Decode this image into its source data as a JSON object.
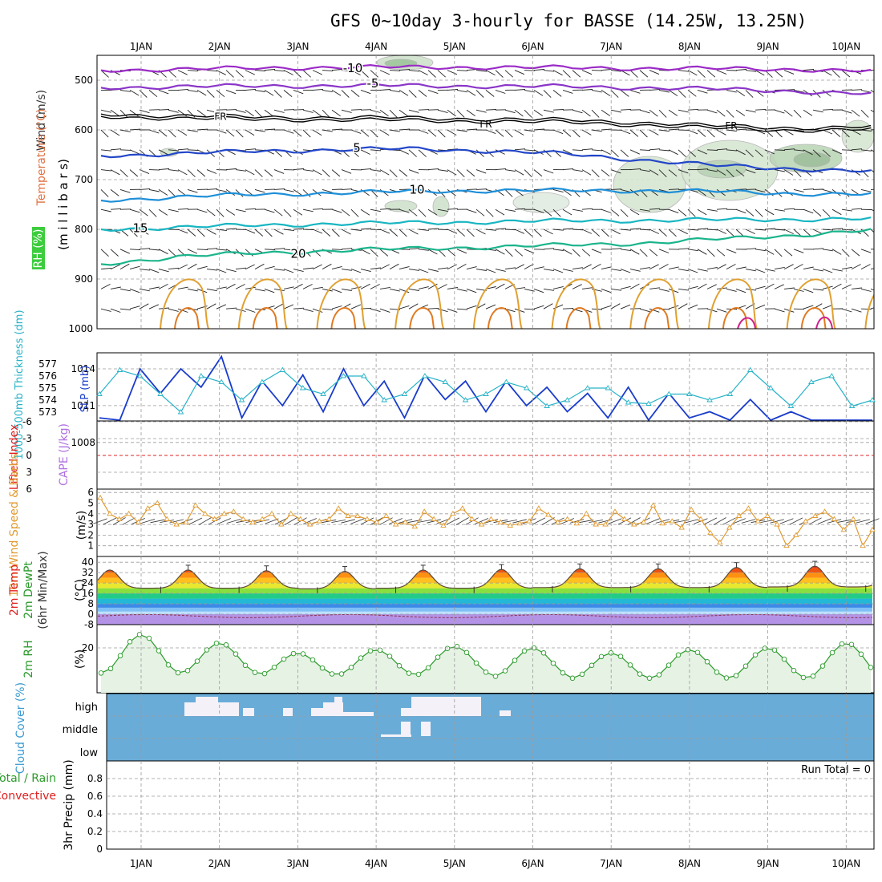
{
  "title": "GFS 0~10day 3-hourly for BASSE (14.25W, 13.25N)",
  "chart_data": {
    "type": "meteogram",
    "x_axis": {
      "ticks": [
        "1JAN",
        "2JAN",
        "3JAN",
        "4JAN",
        "5JAN",
        "6JAN",
        "7JAN",
        "8JAN",
        "9JAN",
        "10JAN"
      ]
    },
    "panels": {
      "upper_air": {
        "labels": {
          "wind": "Wind (m/s)",
          "temperature": "Temperature (°C)",
          "rh": "RH (%)",
          "pressure": "(m i l l i b a r s)"
        },
        "y_ticks": [
          "500",
          "600",
          "700",
          "800",
          "900",
          "1000"
        ],
        "ylim": [
          450,
          1000
        ],
        "freezing_label": "FR",
        "isotherms": [
          {
            "label": "-10",
            "color": "#9b2bc7",
            "levels": [
              480,
              478,
              476,
              474,
              474,
              474,
              475,
              476,
              477,
              478,
              482
            ]
          },
          {
            "label": "-5",
            "color": "#8a35c8",
            "levels": [
              515,
              513,
              512,
              511,
              511,
              512,
              513,
              515,
              518,
              522,
              528
            ]
          },
          {
            "label": "FR",
            "color": "#000000",
            "levels": [
              568,
              572,
              574,
              575,
              576,
              578,
              580,
              585,
              592,
              596,
              594
            ]
          },
          {
            "label": "5",
            "color": "#2246c8",
            "levels": [
              652,
              648,
              643,
              640,
              638,
              642,
              648,
              660,
              672,
              678,
              684
            ]
          },
          {
            "label": "10",
            "color": "#1e8fd8",
            "levels": [
              742,
              735,
              730,
              727,
              724,
              722,
              722,
              722,
              724,
              728,
              730
            ]
          },
          {
            "label": "15",
            "color": "#18b6c2",
            "levels": [
              800,
              796,
              792,
              789,
              787,
              785,
              783,
              782,
              781,
              780,
              779
            ]
          },
          {
            "label": "20",
            "color": "#1ab48c",
            "levels": [
              870,
              855,
              848,
              843,
              839,
              836,
              832,
              828,
              820,
              812,
              802
            ]
          }
        ]
      },
      "slp_thickness": {
        "labels": {
          "thickness": "1000-500mb Thickness (dm)",
          "slp": "SLP (mb)"
        },
        "thickness_ticks": [
          "577",
          "576",
          "575",
          "574",
          "573"
        ],
        "slp_ticks": [
          "1014",
          "1011",
          "1008"
        ],
        "slp": [
          1010,
          1009.5,
          1014,
          1012,
          1014,
          1012.5,
          1015,
          1010,
          1013,
          1011,
          1013.5,
          1010.5,
          1014,
          1011,
          1013,
          1010,
          1013.5,
          1011.5,
          1013,
          1010.5,
          1013,
          1011,
          1012.5,
          1010.5,
          1012,
          1010,
          1012.5,
          1009,
          1012,
          1010,
          1010.5,
          1008,
          1011.5,
          1009,
          1010.5,
          1006.5,
          1009,
          1008.5,
          1008.5
        ],
        "thickness": [
          574.5,
          576.5,
          576,
          574.5,
          573,
          576,
          575.5,
          574,
          575.5,
          576.5,
          575,
          574.5,
          576,
          576,
          574,
          574.5,
          576,
          575.5,
          574,
          574.5,
          575.5,
          575,
          573.5,
          574,
          575,
          575,
          573.8,
          573.7,
          574.5,
          574.5,
          574,
          574.5,
          576.5,
          575,
          573.5,
          575.5,
          576,
          573.5,
          574
        ]
      },
      "stability": {
        "labels": {
          "lifted_index": "Lifted Index",
          "cape": "CAPE (J/kg)"
        },
        "y_ticks": [
          "-6",
          "-3",
          "0",
          "3",
          "6"
        ]
      },
      "wind10m": {
        "labels": {
          "title": "10m Wind Speed & Barbs",
          "unit": "(m/s)"
        },
        "y_ticks": [
          "1",
          "2",
          "3",
          "4",
          "5",
          "6"
        ],
        "speed": [
          5.5,
          4,
          3.5,
          4,
          3.2,
          4.5,
          5,
          3.5,
          3,
          3.2,
          4.8,
          4,
          3.5,
          4,
          4.2,
          3.5,
          3.2,
          3.5,
          4,
          3,
          4,
          3.5,
          3,
          3.3,
          3.5,
          4.5,
          3.8,
          3.8,
          3.5,
          3.2,
          3.8,
          3,
          3.2,
          2.8,
          4.2,
          3.5,
          2.9,
          4,
          4.5,
          3.5,
          3,
          3.5,
          3.2,
          2.9,
          3.1,
          3.3,
          4.5,
          3.9,
          3.2,
          3.5,
          3.1,
          4,
          3,
          3,
          4.2,
          3.5,
          3,
          3.2,
          4.8,
          3.1,
          3.3,
          2.7,
          4.4,
          3.5,
          2.2,
          1.3,
          2.7,
          3.8,
          4.5,
          3.3,
          3.8,
          3,
          1,
          2,
          3.3,
          3.8,
          4.2,
          3.5,
          2.5,
          3.5,
          1,
          2.5
        ]
      },
      "temperature": {
        "labels": {
          "temp": "2m Temp",
          "dewpoint": "2m DewPt",
          "minmax": "(6hr Min/Max)",
          "unit": "(°C)"
        },
        "y_ticks": [
          "40",
          "32",
          "24",
          "16",
          "8",
          "0",
          "-8"
        ],
        "daily_max": [
          34,
          33.5,
          33,
          34,
          34.5,
          35,
          35,
          36,
          37,
          38
        ],
        "daily_min": [
          20,
          20,
          19.5,
          20,
          20,
          20.5,
          20.5,
          20.5,
          21,
          21
        ]
      },
      "rh2m": {
        "labels": {
          "title": "2m RH",
          "unit": "(%)"
        },
        "y_ticks": [
          "20"
        ],
        "daily_max": [
          28,
          23,
          17,
          19,
          21,
          20,
          17,
          19,
          20,
          23
        ],
        "daily_min": [
          5,
          5,
          4,
          4,
          4,
          3,
          2,
          2,
          2,
          2
        ]
      },
      "cloud": {
        "labels": {
          "title": "Cloud Cover (%)"
        },
        "y_ticks": [
          "high",
          "middle",
          "low"
        ]
      },
      "precip": {
        "labels": {
          "title": "3hr Precip (mm)",
          "total": "Total / Rain",
          "convective": "Convective"
        },
        "y_ticks": [
          "0.8",
          "0.6",
          "0.4",
          "0.2",
          "0"
        ],
        "run_total": "Run Total = 0"
      }
    },
    "colors": {
      "slp": "#1a3ccc",
      "thickness": "#27b3c8",
      "wind": "#e09a30",
      "rh": "#2a9a2a",
      "cloud_bg": "#6aacd8",
      "lifted_index": "#e02020",
      "cape": "#b070e0"
    }
  }
}
